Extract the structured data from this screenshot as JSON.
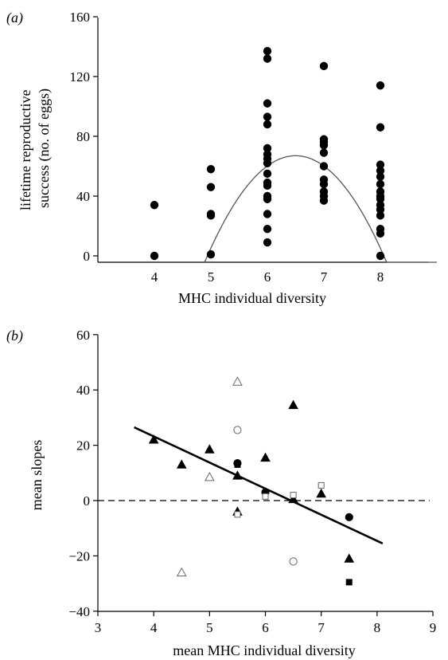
{
  "chart_data": [
    {
      "panel_label": "(a)",
      "type": "scatter",
      "xlabel": "MHC individual diversity",
      "ylabel_lines": [
        "lifetime reproductive",
        "success (no. of eggs)"
      ],
      "xlim": [
        3,
        9
      ],
      "ylim": [
        -5,
        160
      ],
      "xticks": [
        4,
        5,
        6,
        7,
        8
      ],
      "yticks": [
        0,
        40,
        80,
        120,
        160
      ],
      "grid": false,
      "points": [
        {
          "x": 4,
          "y": 34
        },
        {
          "x": 4,
          "y": 0
        },
        {
          "x": 5,
          "y": 58
        },
        {
          "x": 5,
          "y": 46
        },
        {
          "x": 5,
          "y": 28
        },
        {
          "x": 5,
          "y": 27
        },
        {
          "x": 5,
          "y": 1
        },
        {
          "x": 6,
          "y": 137
        },
        {
          "x": 6,
          "y": 132
        },
        {
          "x": 6,
          "y": 102
        },
        {
          "x": 6,
          "y": 93
        },
        {
          "x": 6,
          "y": 88
        },
        {
          "x": 6,
          "y": 72
        },
        {
          "x": 6,
          "y": 68
        },
        {
          "x": 6,
          "y": 65
        },
        {
          "x": 6,
          "y": 62
        },
        {
          "x": 6,
          "y": 55
        },
        {
          "x": 6,
          "y": 49
        },
        {
          "x": 6,
          "y": 47
        },
        {
          "x": 6,
          "y": 40
        },
        {
          "x": 6,
          "y": 38
        },
        {
          "x": 6,
          "y": 28
        },
        {
          "x": 6,
          "y": 18
        },
        {
          "x": 6,
          "y": 9
        },
        {
          "x": 7,
          "y": 127
        },
        {
          "x": 7,
          "y": 78
        },
        {
          "x": 7,
          "y": 76
        },
        {
          "x": 7,
          "y": 74
        },
        {
          "x": 7,
          "y": 69
        },
        {
          "x": 7,
          "y": 60
        },
        {
          "x": 7,
          "y": 51
        },
        {
          "x": 7,
          "y": 48
        },
        {
          "x": 7,
          "y": 43
        },
        {
          "x": 7,
          "y": 40
        },
        {
          "x": 7,
          "y": 37
        },
        {
          "x": 8,
          "y": 114
        },
        {
          "x": 8,
          "y": 86
        },
        {
          "x": 8,
          "y": 61
        },
        {
          "x": 8,
          "y": 57
        },
        {
          "x": 8,
          "y": 53
        },
        {
          "x": 8,
          "y": 48
        },
        {
          "x": 8,
          "y": 43
        },
        {
          "x": 8,
          "y": 40
        },
        {
          "x": 8,
          "y": 38
        },
        {
          "x": 8,
          "y": 34
        },
        {
          "x": 8,
          "y": 31
        },
        {
          "x": 8,
          "y": 27
        },
        {
          "x": 8,
          "y": 18
        },
        {
          "x": 8,
          "y": 15
        },
        {
          "x": 8,
          "y": 0
        }
      ],
      "fit_curve": {
        "type": "quadratic",
        "vertex_x": 6.5,
        "vertex_y": 67,
        "a": -93.5,
        "color": "#555555"
      }
    },
    {
      "panel_label": "(b)",
      "type": "scatter",
      "xlabel": "mean MHC individual diversity",
      "ylabel": "mean slopes",
      "xlim": [
        3,
        9
      ],
      "ylim": [
        -40,
        60
      ],
      "xticks": [
        3,
        4,
        5,
        6,
        7,
        8,
        9
      ],
      "yticks": [
        -40,
        -20,
        0,
        20,
        40,
        60
      ],
      "grid": false,
      "reference_line": {
        "y": 0,
        "style": "dashed"
      },
      "regression_line": {
        "x": [
          3.65,
          8.1
        ],
        "y": [
          26.5,
          -15.5
        ]
      },
      "series": [
        {
          "marker": "filled-triangle",
          "points": [
            {
              "x": 4,
              "y": 22
            },
            {
              "x": 4.5,
              "y": 13
            },
            {
              "x": 5,
              "y": 18.5
            },
            {
              "x": 5.5,
              "y": 9
            },
            {
              "x": 5.5,
              "y": -4
            },
            {
              "x": 6,
              "y": 15.5
            },
            {
              "x": 6.5,
              "y": 34.5
            },
            {
              "x": 6.5,
              "y": 0.5
            },
            {
              "x": 7,
              "y": 2.5
            },
            {
              "x": 7.5,
              "y": -21
            }
          ]
        },
        {
          "marker": "open-triangle",
          "points": [
            {
              "x": 5.5,
              "y": 43
            },
            {
              "x": 5,
              "y": 8.5
            },
            {
              "x": 4.5,
              "y": -26
            }
          ]
        },
        {
          "marker": "open-circle",
          "points": [
            {
              "x": 5.5,
              "y": 25.5
            },
            {
              "x": 6.5,
              "y": -22
            }
          ]
        },
        {
          "marker": "filled-circle",
          "points": [
            {
              "x": 5.5,
              "y": 13.5
            },
            {
              "x": 6,
              "y": 3
            },
            {
              "x": 7.5,
              "y": -6
            }
          ]
        },
        {
          "marker": "open-square",
          "points": [
            {
              "x": 5.5,
              "y": -5
            },
            {
              "x": 6,
              "y": 1.5
            },
            {
              "x": 6.5,
              "y": 2
            },
            {
              "x": 7,
              "y": 5.5
            }
          ]
        },
        {
          "marker": "filled-square",
          "points": [
            {
              "x": 5.5,
              "y": 13
            },
            {
              "x": 7.5,
              "y": -29.5
            }
          ]
        }
      ]
    }
  ]
}
